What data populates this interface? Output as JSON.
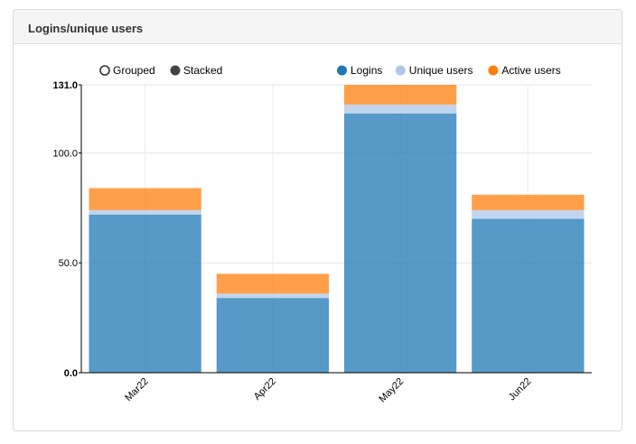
{
  "panel": {
    "title": "Logins/unique users"
  },
  "controls": {
    "grouped_label": "Grouped",
    "stacked_label": "Stacked",
    "selected": "Stacked"
  },
  "colors": {
    "logins": "#1f77b4",
    "unique": "#aec7e8",
    "active": "#ff7f0e"
  },
  "chart_data": {
    "type": "bar",
    "stacked": true,
    "categories": [
      "Mar22",
      "Apr22",
      "May22",
      "Jun22"
    ],
    "series": [
      {
        "name": "Logins",
        "values": [
          72,
          34,
          118,
          70
        ]
      },
      {
        "name": "Unique users",
        "values": [
          2,
          2,
          4,
          4
        ]
      },
      {
        "name": "Active users",
        "values": [
          10,
          9,
          9,
          7
        ]
      }
    ],
    "y_ticks": [
      "0.0",
      "50.0",
      "100.0",
      "131.0"
    ],
    "ylim": [
      0,
      131
    ],
    "grid": true,
    "legend_position": "top-right"
  }
}
